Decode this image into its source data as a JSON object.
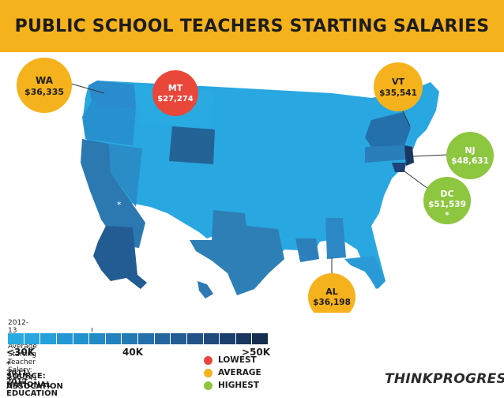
{
  "title": "PUBLIC SCHOOL TEACHERS STARTING SALARIES",
  "colors": {
    "header_bg": "#f6b21c",
    "lowest": "#e8473a",
    "average": "#f6b21c",
    "highest": "#8dc63f",
    "scale": [
      "#29abe2",
      "#27a6df",
      "#25a0da",
      "#2398d4",
      "#2391cd",
      "#238ac6",
      "#2382bf",
      "#2479b5",
      "#2470ab",
      "#2467a0",
      "#235d94",
      "#215388",
      "#1f4a7b",
      "#1c406e",
      "#193760",
      "#162e52"
    ]
  },
  "callouts": [
    {
      "state": "WA",
      "value": "$36,335",
      "category": "average"
    },
    {
      "state": "MT",
      "value": "$27,274",
      "category": "lowest"
    },
    {
      "state": "VT",
      "value": "$35,541",
      "category": "average"
    },
    {
      "state": "NJ",
      "value": "$48,631",
      "category": "highest"
    },
    {
      "state": "DC",
      "value": "$51,539",
      "category": "highest",
      "footnote": "*"
    },
    {
      "state": "AL",
      "value": "$36,198",
      "category": "average"
    }
  ],
  "legend": {
    "national_average": "2012-13 National Average Starting Teacher Salary: $36,141",
    "scale_labels": [
      "<30K",
      "40K",
      ">50K"
    ],
    "footnote": "* 2011-2012",
    "source_line1": "SOURCE: NATIONAL EDUCATION",
    "source_line2": "ASSOCATION",
    "key": [
      {
        "label": "LOWEST",
        "category": "lowest"
      },
      {
        "label": "AVERAGE",
        "category": "average"
      },
      {
        "label": "HIGHEST",
        "category": "highest"
      }
    ]
  },
  "logo": "THINKPROGRESS"
}
